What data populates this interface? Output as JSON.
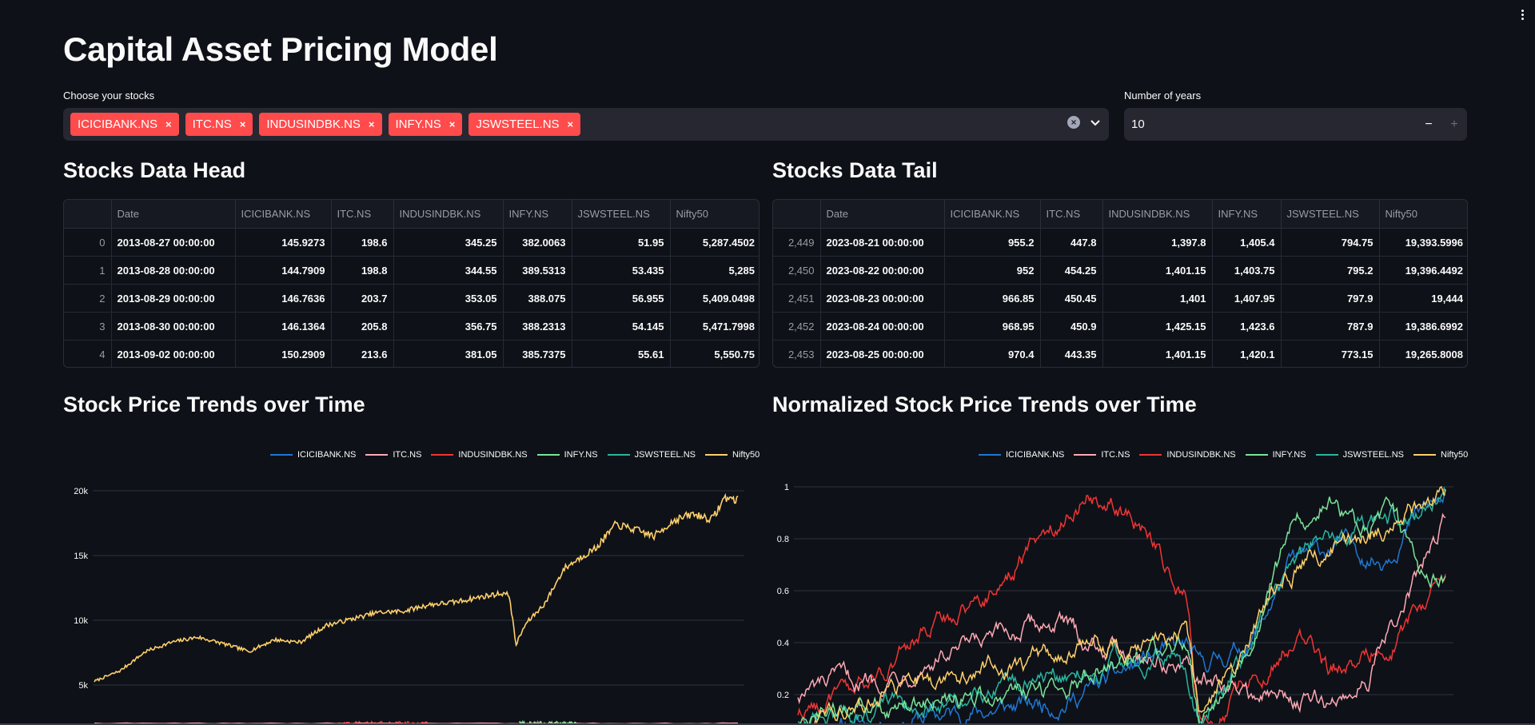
{
  "app": {
    "title": "Capital Asset Pricing Model",
    "stocks_label": "Choose your stocks",
    "years_label": "Number of years",
    "years_value": "10",
    "selected_stocks": [
      "ICICIBANK.NS",
      "ITC.NS",
      "INDUSINDBK.NS",
      "INFY.NS",
      "JSWSTEEL.NS"
    ],
    "chip_close_symbol": "×",
    "clear_symbol": "×",
    "minus_symbol": "−",
    "plus_symbol": "+",
    "accent_color": "#ff4b4b"
  },
  "head": {
    "title": "Stocks Data Head",
    "columns": [
      "",
      "Date",
      "ICICIBANK.NS",
      "ITC.NS",
      "INDUSINDBK.NS",
      "INFY.NS",
      "JSWSTEEL.NS",
      "Nifty50"
    ],
    "rows": [
      [
        "0",
        "2013-08-27 00:00:00",
        "145.9273",
        "198.6",
        "345.25",
        "382.0063",
        "51.95",
        "5,287.4502"
      ],
      [
        "1",
        "2013-08-28 00:00:00",
        "144.7909",
        "198.8",
        "344.55",
        "389.5313",
        "53.435",
        "5,285"
      ],
      [
        "2",
        "2013-08-29 00:00:00",
        "146.7636",
        "203.7",
        "353.05",
        "388.075",
        "56.955",
        "5,409.0498"
      ],
      [
        "3",
        "2013-08-30 00:00:00",
        "146.1364",
        "205.8",
        "356.75",
        "388.2313",
        "54.145",
        "5,471.7998"
      ],
      [
        "4",
        "2013-09-02 00:00:00",
        "150.2909",
        "213.6",
        "381.05",
        "385.7375",
        "55.61",
        "5,550.75"
      ]
    ]
  },
  "tail": {
    "title": "Stocks Data Tail",
    "columns": [
      "",
      "Date",
      "ICICIBANK.NS",
      "ITC.NS",
      "INDUSINDBK.NS",
      "INFY.NS",
      "JSWSTEEL.NS",
      "Nifty50"
    ],
    "rows": [
      [
        "2,449",
        "2023-08-21 00:00:00",
        "955.2",
        "447.8",
        "1,397.8",
        "1,405.4",
        "794.75",
        "19,393.5996"
      ],
      [
        "2,450",
        "2023-08-22 00:00:00",
        "952",
        "454.25",
        "1,401.15",
        "1,403.75",
        "795.2",
        "19,396.4492"
      ],
      [
        "2,451",
        "2023-08-23 00:00:00",
        "966.85",
        "450.45",
        "1,401",
        "1,407.95",
        "797.9",
        "19,444"
      ],
      [
        "2,452",
        "2023-08-24 00:00:00",
        "968.95",
        "450.9",
        "1,425.15",
        "1,423.6",
        "787.9",
        "19,386.6992"
      ],
      [
        "2,453",
        "2023-08-25 00:00:00",
        "970.4",
        "443.35",
        "1,401.15",
        "1,420.1",
        "773.15",
        "19,265.8008"
      ]
    ]
  },
  "chart_data": [
    {
      "type": "line",
      "title": "Stock Price Trends over Time",
      "legend_position": "top-right",
      "series": [
        {
          "name": "ICICIBANK.NS",
          "color": "#1f77d4"
        },
        {
          "name": "ITC.NS",
          "color": "#ffa9b5"
        },
        {
          "name": "INDUSINDBK.NS",
          "color": "#ef3535"
        },
        {
          "name": "INFY.NS",
          "color": "#7be39a"
        },
        {
          "name": "JSWSTEEL.NS",
          "color": "#2ab5a0"
        },
        {
          "name": "Nifty50",
          "color": "#ffd06b"
        }
      ],
      "y_ticks": [
        "20k",
        "15k",
        "10k",
        "5k"
      ],
      "y_tick_values": [
        20000,
        15000,
        10000,
        5000
      ],
      "ylim": [
        3000,
        21000
      ],
      "nifty_keypoints": [
        [
          0,
          5287
        ],
        [
          0.04,
          6100
        ],
        [
          0.08,
          7600
        ],
        [
          0.12,
          8300
        ],
        [
          0.16,
          8700
        ],
        [
          0.2,
          8200
        ],
        [
          0.24,
          7600
        ],
        [
          0.28,
          8500
        ],
        [
          0.32,
          8300
        ],
        [
          0.36,
          9600
        ],
        [
          0.4,
          10100
        ],
        [
          0.44,
          10600
        ],
        [
          0.48,
          10700
        ],
        [
          0.52,
          11200
        ],
        [
          0.56,
          11400
        ],
        [
          0.6,
          11800
        ],
        [
          0.635,
          12100
        ],
        [
          0.645,
          11900
        ],
        [
          0.655,
          8100
        ],
        [
          0.67,
          9700
        ],
        [
          0.7,
          11300
        ],
        [
          0.73,
          14000
        ],
        [
          0.76,
          15000
        ],
        [
          0.78,
          15600
        ],
        [
          0.81,
          17400
        ],
        [
          0.84,
          17000
        ],
        [
          0.87,
          16500
        ],
        [
          0.9,
          17700
        ],
        [
          0.93,
          18200
        ],
        [
          0.96,
          17800
        ],
        [
          0.98,
          19500
        ],
        [
          1.0,
          19266
        ]
      ]
    },
    {
      "type": "line",
      "title": "Normalized Stock Price Trends over Time",
      "legend_position": "top-right",
      "series": [
        {
          "name": "ICICIBANK.NS",
          "color": "#1f77d4"
        },
        {
          "name": "ITC.NS",
          "color": "#ffa9b5"
        },
        {
          "name": "INDUSINDBK.NS",
          "color": "#ef3535"
        },
        {
          "name": "INFY.NS",
          "color": "#7be39a"
        },
        {
          "name": "JSWSTEEL.NS",
          "color": "#2ab5a0"
        },
        {
          "name": "Nifty50",
          "color": "#ffd06b"
        }
      ],
      "y_ticks": [
        "1",
        "0.8",
        "0.6",
        "0.4",
        "0.2"
      ],
      "y_tick_values": [
        1,
        0.8,
        0.6,
        0.4,
        0.2
      ],
      "ylim": [
        0.1,
        1.0
      ]
    }
  ]
}
